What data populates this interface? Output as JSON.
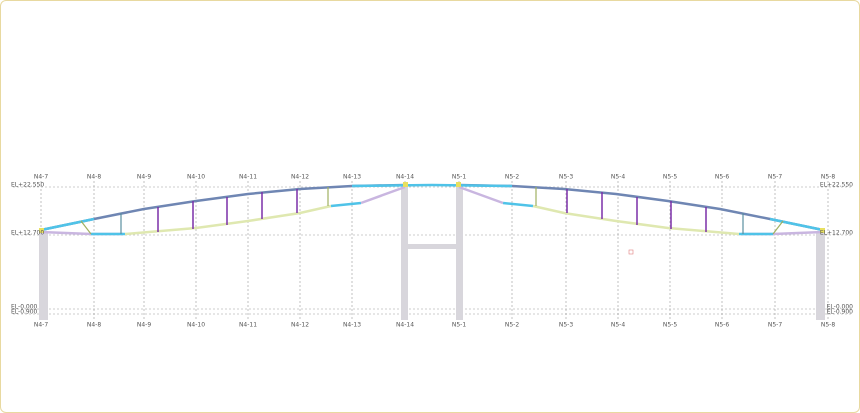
{
  "grid_axes": [
    "N4-7",
    "N4-8",
    "N4-9",
    "N4-10",
    "N4-11",
    "N4-12",
    "N4-13",
    "N4-14",
    "N5-1",
    "N5-2",
    "N5-3",
    "N5-4",
    "N5-5",
    "N5-6",
    "N5-7",
    "N5-8"
  ],
  "levels": [
    "EL+22.550",
    "EL+12.700",
    "EL-0.000",
    "EL-0.900"
  ]
}
